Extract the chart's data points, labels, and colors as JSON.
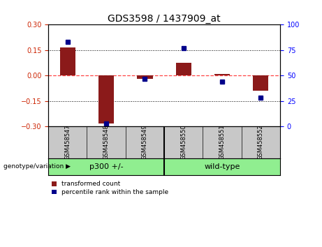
{
  "title": "GDS3598 / 1437909_at",
  "samples": [
    "GSM458547",
    "GSM458548",
    "GSM458549",
    "GSM458550",
    "GSM458551",
    "GSM458552"
  ],
  "transformed_counts": [
    0.165,
    -0.285,
    -0.02,
    0.075,
    0.01,
    -0.09
  ],
  "percentile_ranks": [
    83,
    3,
    47,
    77,
    44,
    28
  ],
  "group_labels": [
    "p300 +/-",
    "wild-type"
  ],
  "group_split": 3,
  "group_color": "#90EE90",
  "ylim_left": [
    -0.3,
    0.3
  ],
  "ylim_right": [
    0,
    100
  ],
  "yticks_left": [
    -0.3,
    -0.15,
    0,
    0.15,
    0.3
  ],
  "yticks_right": [
    0,
    25,
    50,
    75,
    100
  ],
  "bar_color": "#8B1A1A",
  "dot_color": "#00008B",
  "hline_color": "#FF4444",
  "bg_plot": "#FFFFFF",
  "bg_label": "#C8C8C8",
  "label_fontsize": 7,
  "title_fontsize": 10
}
